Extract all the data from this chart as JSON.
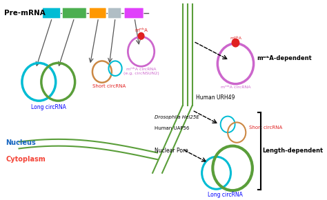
{
  "bg_color": "#ffffff",
  "premrna_label": "Pre-mRNA",
  "nucleus_label": "Nucleus",
  "nucleus_color": "#1565c0",
  "cytoplasm_label": "Cytoplasm",
  "cytoplasm_color": "#f44336",
  "human_urh49_label": "Human URH49",
  "drosophila_label": "Drosophila Hel25E",
  "human_uap56_label": "Human UAP56",
  "nuclear_pore_label": "Nuclear Pore",
  "m6a_dependent_label": "mᵐᵇA-dependent",
  "length_dependent_label": "Length-dependent",
  "long_circrna_label": "Long circRNA",
  "short_circrna_label": "Short circRNA",
  "m6a_circrna_label": "mᵐᵇA circRNA\n(e.g. circNSUN2)",
  "m6a_label": "mᵐᵇA",
  "m6a_circrna2_label": "mᵐᵇA circRNA",
  "exon_colors": [
    "#00bcd4",
    "#4caf50",
    "#ff9800",
    "#b0bec5",
    "#e040fb"
  ],
  "green_color": "#5a9e3a",
  "cyan_color": "#00bcd4",
  "orange_color": "#cc8844",
  "purple_color": "#cc66cc",
  "red_color": "#e02020",
  "gray_color": "#555555"
}
